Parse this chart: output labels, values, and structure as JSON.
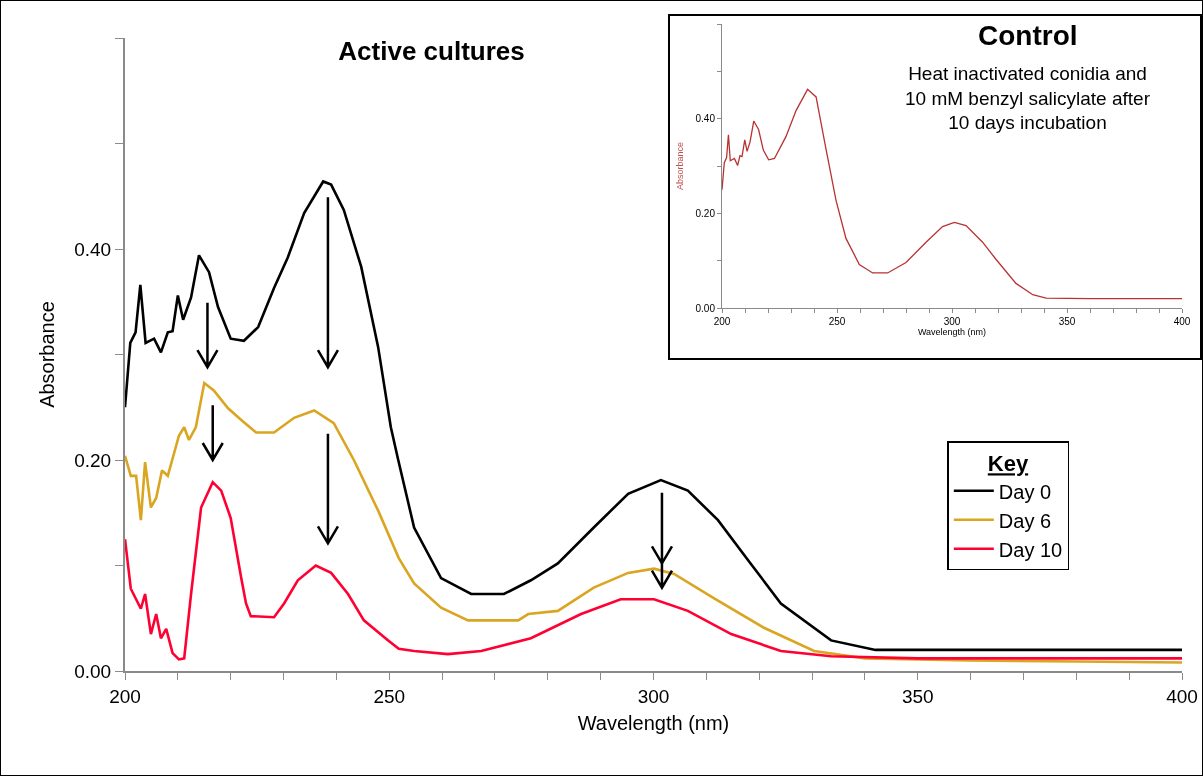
{
  "chart_data": [
    {
      "type": "line",
      "title": "Active cultures",
      "xlabel": "Wavelength (nm)",
      "ylabel": "Absorbance",
      "legend_title": "Key",
      "legend": "right",
      "xlim": [
        200,
        400
      ],
      "ylim": [
        0,
        0.6
      ],
      "xticks": [
        200,
        {
          "value": 210,
          "label": null
        },
        {
          "value": 220,
          "label": null
        },
        {
          "value": 230,
          "label": null
        },
        {
          "value": 240,
          "label": null
        },
        250,
        {
          "value": 260,
          "label": null
        },
        {
          "value": 270,
          "label": null
        },
        {
          "value": 280,
          "label": null
        },
        {
          "value": 290,
          "label": null
        },
        300,
        {
          "value": 310,
          "label": null
        },
        {
          "value": 320,
          "label": null
        },
        {
          "value": 330,
          "label": null
        },
        {
          "value": 340,
          "label": null
        },
        350,
        {
          "value": 360,
          "label": null
        },
        {
          "value": 370,
          "label": null
        },
        {
          "value": 380,
          "label": null
        },
        {
          "value": 390,
          "label": null
        },
        400
      ],
      "yticks": [
        {
          "value": 0,
          "label": "0.00"
        },
        {
          "value": 0.1,
          "label": null
        },
        {
          "value": 0.2,
          "label": "0.20"
        },
        {
          "value": 0.3,
          "label": null
        },
        {
          "value": 0.4,
          "label": "0.40"
        },
        {
          "value": 0.5,
          "label": null
        },
        {
          "value": 0.6,
          "label": null
        }
      ],
      "series": [
        {
          "name": "Day 0",
          "color": "#000000",
          "x": [
            200,
            201,
            202,
            202.9,
            203.9,
            205.5,
            206.8,
            208.1,
            209,
            210,
            211,
            212.5,
            214,
            215.9,
            217.6,
            220,
            222.5,
            225.2,
            228.2,
            230.8,
            233.9,
            237.5,
            239,
            241.4,
            244.7,
            247.9,
            250.3,
            251.7,
            254.7,
            259.8,
            265.5,
            271.7,
            276.8,
            281.9,
            288.7,
            295.2,
            301.4,
            306.5,
            312.2,
            317.9,
            324.1,
            333.6,
            342,
            360,
            380,
            400
          ],
          "values": [
            0.25,
            0.311,
            0.321,
            0.366,
            0.311,
            0.315,
            0.302,
            0.321,
            0.322,
            0.356,
            0.333,
            0.354,
            0.394,
            0.378,
            0.345,
            0.315,
            0.313,
            0.326,
            0.363,
            0.392,
            0.434,
            0.464,
            0.461,
            0.437,
            0.383,
            0.307,
            0.231,
            0.2,
            0.136,
            0.088,
            0.073,
            0.073,
            0.086,
            0.102,
            0.136,
            0.168,
            0.181,
            0.171,
            0.143,
            0.105,
            0.064,
            0.029,
            0.02,
            0.02,
            0.02,
            0.02
          ]
        },
        {
          "name": "Day 6",
          "color": "#daa520",
          "x": [
            200,
            201.1,
            202.1,
            203,
            203.8,
            204.9,
            205.9,
            207,
            208.1,
            210.2,
            211.2,
            212.1,
            213.4,
            215,
            216.8,
            219.5,
            222,
            224.8,
            228.2,
            232,
            235.8,
            239.5,
            243.3,
            247.9,
            251.8,
            254.7,
            259.8,
            264.9,
            274.4,
            276.3,
            281.9,
            288.7,
            295.2,
            300.1,
            303.9,
            311.4,
            320.9,
            330.4,
            340,
            360,
            380,
            400
          ],
          "values": [
            0.204,
            0.185,
            0.185,
            0.143,
            0.198,
            0.155,
            0.164,
            0.19,
            0.185,
            0.223,
            0.231,
            0.219,
            0.231,
            0.273,
            0.266,
            0.249,
            0.238,
            0.226,
            0.226,
            0.24,
            0.247,
            0.235,
            0.2,
            0.152,
            0.107,
            0.083,
            0.06,
            0.048,
            0.048,
            0.054,
            0.057,
            0.079,
            0.093,
            0.097,
            0.092,
            0.069,
            0.041,
            0.019,
            0.012,
            0.01,
            0.009,
            0.008
          ]
        },
        {
          "name": "Day 10",
          "color": "#ff0033",
          "x": [
            200,
            201.1,
            203,
            203.8,
            204.9,
            205.9,
            206.8,
            207.8,
            209,
            210.2,
            211.2,
            212.5,
            214.4,
            216.6,
            218.2,
            220,
            222,
            222.9,
            223.8,
            228.2,
            230.1,
            232.7,
            236.1,
            239,
            242.2,
            245.2,
            249.8,
            251.8,
            254.7,
            261.1,
            267.4,
            276.8,
            286.3,
            293.8,
            300.1,
            306.5,
            314.7,
            324.1,
            333.6,
            350,
            400
          ],
          "values": [
            0.125,
            0.078,
            0.059,
            0.073,
            0.035,
            0.054,
            0.031,
            0.04,
            0.017,
            0.011,
            0.012,
            0.073,
            0.155,
            0.179,
            0.171,
            0.145,
            0.088,
            0.064,
            0.052,
            0.051,
            0.064,
            0.086,
            0.1,
            0.093,
            0.073,
            0.048,
            0.029,
            0.021,
            0.019,
            0.016,
            0.019,
            0.031,
            0.054,
            0.068,
            0.068,
            0.057,
            0.035,
            0.019,
            0.014,
            0.012,
            0.012
          ]
        }
      ]
    },
    {
      "type": "line",
      "title": "Control",
      "subtitle": "Heat inactivated conidia and\n10 mM benzyl salicylate after\n10 days incubation",
      "xlabel": "Wavelength (nm)",
      "ylabel": "Absorbance",
      "xlim": [
        200,
        400
      ],
      "ylim": [
        0,
        0.6
      ],
      "xticks": [
        200,
        {
          "value": 210,
          "label": null
        },
        {
          "value": 220,
          "label": null
        },
        {
          "value": 230,
          "label": null
        },
        {
          "value": 240,
          "label": null
        },
        250,
        {
          "value": 260,
          "label": null
        },
        {
          "value": 270,
          "label": null
        },
        {
          "value": 280,
          "label": null
        },
        {
          "value": 290,
          "label": null
        },
        300,
        {
          "value": 310,
          "label": null
        },
        {
          "value": 320,
          "label": null
        },
        {
          "value": 330,
          "label": null
        },
        {
          "value": 340,
          "label": null
        },
        350,
        {
          "value": 360,
          "label": null
        },
        {
          "value": 370,
          "label": null
        },
        {
          "value": 380,
          "label": null
        },
        {
          "value": 390,
          "label": null
        },
        400
      ],
      "yticks": [
        {
          "value": 0,
          "label": "0.00"
        },
        {
          "value": 0.1,
          "label": null
        },
        {
          "value": 0.2,
          "label": "0.20"
        },
        {
          "value": 0.3,
          "label": null
        },
        {
          "value": 0.4,
          "label": "0.40"
        },
        {
          "value": 0.5,
          "label": null
        },
        {
          "value": 0.6,
          "label": null
        }
      ],
      "series": [
        {
          "color": "#b83232",
          "x": [
            200,
            201,
            202,
            202.8,
            203.6,
            205.4,
            206.8,
            207.8,
            208.7,
            209.9,
            210.9,
            212.2,
            213.8,
            215.9,
            218,
            220.3,
            222.8,
            227.8,
            232.2,
            237.2,
            240.9,
            245.2,
            249.6,
            253.9,
            259.7,
            265.5,
            272,
            280,
            288.7,
            295.9,
            301,
            306.1,
            313.3,
            319.1,
            327.8,
            335.1,
            340.9,
            360,
            380,
            400
          ],
          "values": [
            0.25,
            0.307,
            0.318,
            0.366,
            0.311,
            0.316,
            0.301,
            0.322,
            0.32,
            0.355,
            0.331,
            0.351,
            0.395,
            0.377,
            0.333,
            0.313,
            0.316,
            0.362,
            0.417,
            0.462,
            0.446,
            0.336,
            0.227,
            0.147,
            0.092,
            0.074,
            0.074,
            0.096,
            0.139,
            0.172,
            0.181,
            0.174,
            0.139,
            0.103,
            0.052,
            0.028,
            0.021,
            0.02,
            0.02,
            0.02
          ]
        }
      ]
    }
  ]
}
